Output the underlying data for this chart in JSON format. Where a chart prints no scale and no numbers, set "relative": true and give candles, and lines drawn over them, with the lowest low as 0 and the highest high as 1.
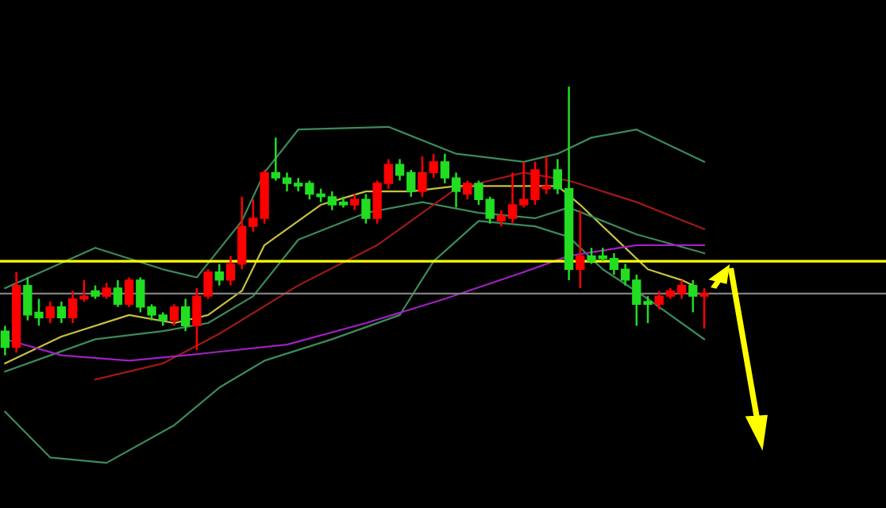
{
  "chart_data": {
    "type": "candlestick",
    "relative": true,
    "categories": [
      null,
      null,
      null,
      null,
      null,
      null,
      null,
      null,
      null,
      null,
      null,
      null,
      null,
      null,
      null,
      null,
      null,
      null,
      null,
      null,
      null,
      null,
      null,
      null,
      null,
      null,
      null,
      null,
      null,
      null,
      null,
      null,
      null,
      null,
      null,
      null,
      null,
      null,
      null,
      null,
      null,
      null,
      null,
      null,
      null,
      null,
      null,
      null,
      null,
      null,
      null,
      null,
      null,
      null,
      null,
      null,
      null,
      null,
      null,
      null,
      null,
      null,
      null
    ],
    "colors": [
      "#22dd22",
      "#ff0000",
      "#22dd22",
      "#22dd22",
      "#ff0000",
      "#22dd22",
      "#ff0000",
      "#ff0000",
      "#22dd22",
      "#ff0000",
      "#22dd22",
      "#ff0000",
      "#22dd22",
      "#22dd22",
      "#22dd22",
      "#ff0000",
      "#22dd22",
      "#ff0000",
      "#ff0000",
      "#22dd22",
      "#ff0000",
      "#ff0000",
      "#ff0000",
      "#ff0000",
      "#22dd22",
      "#22dd22",
      "#22dd22",
      "#22dd22",
      "#22dd22",
      "#22dd22",
      "#22dd22",
      "#ff0000",
      "#22dd22",
      "#ff0000",
      "#ff0000",
      "#22dd22",
      "#22dd22",
      "#ff0000",
      "#ff0000",
      "#22dd22",
      "#22dd22",
      "#ff0000",
      "#22dd22",
      "#22dd22",
      "#ff0000",
      "#ff0000",
      "#ff0000",
      "#ff0000",
      "#ff0000",
      "#22dd22",
      "#22dd22",
      "#ff0000",
      "#22dd22",
      "#22dd22",
      "#22dd22",
      "#22dd22",
      "#22dd22",
      "#22dd22",
      "#ff0000",
      "#ff0000",
      "#ff0000",
      "#22dd22",
      "#ff0000"
    ],
    "ohlc": [
      [
        0.09,
        0.11,
        0,
        0.03
      ],
      [
        0.03,
        0.31,
        0.01,
        0.26
      ],
      [
        0.26,
        0.29,
        0.13,
        0.15
      ],
      [
        0.16,
        0.21,
        0.11,
        0.14
      ],
      [
        0.14,
        0.2,
        0.12,
        0.18
      ],
      [
        0.18,
        0.2,
        0.12,
        0.14
      ],
      [
        0.14,
        0.24,
        0.12,
        0.21
      ],
      [
        0.21,
        0.28,
        0.2,
        0.22
      ],
      [
        0.24,
        0.26,
        0.21,
        0.22
      ],
      [
        0.22,
        0.27,
        0.21,
        0.25
      ],
      [
        0.25,
        0.28,
        0.18,
        0.19
      ],
      [
        0.19,
        0.29,
        0.18,
        0.28
      ],
      [
        0.28,
        0.29,
        0.16,
        0.18
      ],
      [
        0.18,
        0.19,
        0.13,
        0.15
      ],
      [
        0.15,
        0.16,
        0.11,
        0.13
      ],
      [
        0.13,
        0.19,
        0.11,
        0.18
      ],
      [
        0.18,
        0.21,
        0.09,
        0.11
      ],
      [
        0.11,
        0.25,
        0.02,
        0.22
      ],
      [
        0.22,
        0.32,
        0.21,
        0.31
      ],
      [
        0.31,
        0.34,
        0.26,
        0.28
      ],
      [
        0.28,
        0.37,
        0.26,
        0.34
      ],
      [
        0.34,
        0.59,
        0.32,
        0.48
      ],
      [
        0.48,
        0.58,
        0.46,
        0.51
      ],
      [
        0.51,
        0.69,
        0.49,
        0.68
      ],
      [
        0.68,
        0.81,
        0.65,
        0.66
      ],
      [
        0.66,
        0.68,
        0.61,
        0.64
      ],
      [
        0.64,
        0.66,
        0.61,
        0.63
      ],
      [
        0.64,
        0.65,
        0.58,
        0.6
      ],
      [
        0.6,
        0.62,
        0.57,
        0.59
      ],
      [
        0.59,
        0.61,
        0.54,
        0.56
      ],
      [
        0.57,
        0.59,
        0.55,
        0.56
      ],
      [
        0.56,
        0.6,
        0.54,
        0.58
      ],
      [
        0.58,
        0.6,
        0.49,
        0.51
      ],
      [
        0.51,
        0.65,
        0.49,
        0.64
      ],
      [
        0.64,
        0.73,
        0.62,
        0.71
      ],
      [
        0.71,
        0.73,
        0.65,
        0.67
      ],
      [
        0.68,
        0.69,
        0.59,
        0.61
      ],
      [
        0.61,
        0.74,
        0.59,
        0.68
      ],
      [
        0.68,
        0.75,
        0.66,
        0.72
      ],
      [
        0.72,
        0.75,
        0.64,
        0.66
      ],
      [
        0.66,
        0.68,
        0.55,
        0.61
      ],
      [
        0.6,
        0.65,
        0.58,
        0.64
      ],
      [
        0.64,
        0.65,
        0.56,
        0.58
      ],
      [
        0.58,
        0.59,
        0.49,
        0.51
      ],
      [
        0.5,
        0.54,
        0.48,
        0.52
      ],
      [
        0.51,
        0.68,
        0.49,
        0.56
      ],
      [
        0.56,
        0.72,
        0.55,
        0.58
      ],
      [
        0.58,
        0.72,
        0.56,
        0.69
      ],
      [
        0.62,
        0.74,
        0.6,
        0.63
      ],
      [
        0.69,
        0.73,
        0.6,
        0.62
      ],
      [
        0.62,
        1.0,
        0.28,
        0.32
      ],
      [
        0.32,
        0.54,
        0.25,
        0.37
      ],
      [
        0.37,
        0.4,
        0.34,
        0.35
      ],
      [
        0.37,
        0.4,
        0.35,
        0.36
      ],
      [
        0.36,
        0.38,
        0.3,
        0.32
      ],
      [
        0.32,
        0.34,
        0.26,
        0.28
      ],
      [
        0.28,
        0.3,
        0.11,
        0.19
      ],
      [
        0.2,
        0.22,
        0.12,
        0.19
      ],
      [
        0.19,
        0.24,
        0.17,
        0.22
      ],
      [
        0.22,
        0.25,
        0.21,
        0.24
      ],
      [
        0.23,
        0.28,
        0.21,
        0.26
      ],
      [
        0.26,
        0.28,
        0.16,
        0.22
      ],
      [
        0.22,
        0.25,
        0.1,
        0.23
      ]
    ],
    "series": [
      {
        "type": "line",
        "color": "#c8c040",
        "values": [
          -0.03,
          null,
          null,
          null,
          null,
          0.07,
          null,
          null,
          null,
          null,
          null,
          0.15,
          null,
          null,
          null,
          0.12,
          null,
          null,
          0.15,
          null,
          null,
          0.24,
          null,
          0.41,
          null,
          null,
          null,
          null,
          0.56,
          null,
          null,
          null,
          0.61,
          null,
          null,
          null,
          0.61,
          null,
          null,
          null,
          0.63,
          null,
          null,
          null,
          null,
          0.63,
          null,
          null,
          null,
          0.63,
          null,
          0.56,
          null,
          null,
          0.44,
          null,
          null,
          0.32,
          null,
          null,
          0.28,
          0.26,
          null
        ]
      },
      {
        "type": "line",
        "color": "#3c8a5c",
        "values": [
          0.25,
          null,
          null,
          null,
          null,
          null,
          null,
          null,
          0.4,
          null,
          null,
          null,
          null,
          null,
          0.32,
          null,
          null,
          0.29,
          null,
          null,
          null,
          0.5,
          null,
          0.68,
          null,
          null,
          0.84,
          null,
          null,
          null,
          null,
          null,
          null,
          null,
          0.85,
          null,
          null,
          null,
          null,
          null,
          0.75,
          null,
          null,
          null,
          null,
          null,
          0.72,
          null,
          null,
          0.75,
          null,
          null,
          0.81,
          null,
          null,
          null,
          0.84,
          null,
          null,
          null,
          null,
          null,
          0.72
        ]
      },
      {
        "type": "line",
        "color": "#3c8a5c",
        "values": [
          -0.06,
          null,
          null,
          null,
          null,
          null,
          null,
          null,
          0.06,
          null,
          null,
          null,
          null,
          null,
          0.09,
          null,
          null,
          null,
          0.12,
          null,
          null,
          null,
          0.22,
          null,
          null,
          null,
          0.43,
          null,
          null,
          null,
          null,
          null,
          0.53,
          null,
          null,
          null,
          null,
          0.57,
          null,
          null,
          null,
          null,
          0.53,
          null,
          null,
          null,
          null,
          0.51,
          null,
          null,
          0.55,
          null,
          null,
          null,
          null,
          null,
          0.45,
          null,
          null,
          null,
          null,
          null,
          0.38
        ]
      },
      {
        "type": "line",
        "color": "#3c8a5c",
        "values": [
          -0.21,
          null,
          null,
          null,
          -0.38,
          null,
          null,
          null,
          null,
          -0.4,
          null,
          null,
          null,
          null,
          null,
          -0.26,
          null,
          null,
          null,
          -0.12,
          null,
          null,
          null,
          -0.02,
          null,
          null,
          null,
          null,
          null,
          0.06,
          null,
          null,
          null,
          null,
          null,
          0.15,
          null,
          null,
          0.35,
          null,
          null,
          null,
          0.5,
          null,
          null,
          null,
          null,
          0.48,
          null,
          null,
          0.44,
          null,
          null,
          0.32,
          null,
          null,
          null,
          0.21,
          null,
          null,
          null,
          null,
          0.06
        ]
      },
      {
        "type": "line",
        "color": "#a01818",
        "values": [
          null,
          null,
          null,
          null,
          null,
          null,
          null,
          null,
          -0.09,
          null,
          null,
          null,
          null,
          null,
          -0.03,
          null,
          null,
          null,
          null,
          0.08,
          null,
          null,
          null,
          null,
          null,
          null,
          0.26,
          null,
          null,
          null,
          null,
          null,
          null,
          0.41,
          null,
          null,
          null,
          null,
          null,
          null,
          0.62,
          null,
          null,
          null,
          null,
          null,
          0.68,
          null,
          null,
          null,
          0.65,
          null,
          null,
          null,
          null,
          null,
          0.57,
          null,
          null,
          null,
          null,
          null,
          0.47
        ]
      },
      {
        "type": "line",
        "color": "#a020c0",
        "values": [
          0.06,
          null,
          null,
          null,
          null,
          0,
          null,
          null,
          null,
          null,
          null,
          -0.02,
          null,
          null,
          null,
          null,
          0,
          null,
          null,
          null,
          null,
          null,
          null,
          null,
          null,
          0.04,
          null,
          null,
          null,
          null,
          null,
          null,
          0.12,
          null,
          null,
          null,
          null,
          null,
          null,
          0.21,
          null,
          null,
          null,
          null,
          null,
          null,
          0.31,
          null,
          null,
          null,
          0.37,
          null,
          null,
          null,
          null,
          null,
          0.41,
          null,
          null,
          null,
          null,
          null,
          0.41
        ]
      }
    ],
    "ref_lines": [
      {
        "axis": "y",
        "value": 0.35,
        "color": "#ffff00"
      },
      {
        "axis": "y",
        "value": 0.23,
        "color": "#808080"
      }
    ]
  }
}
